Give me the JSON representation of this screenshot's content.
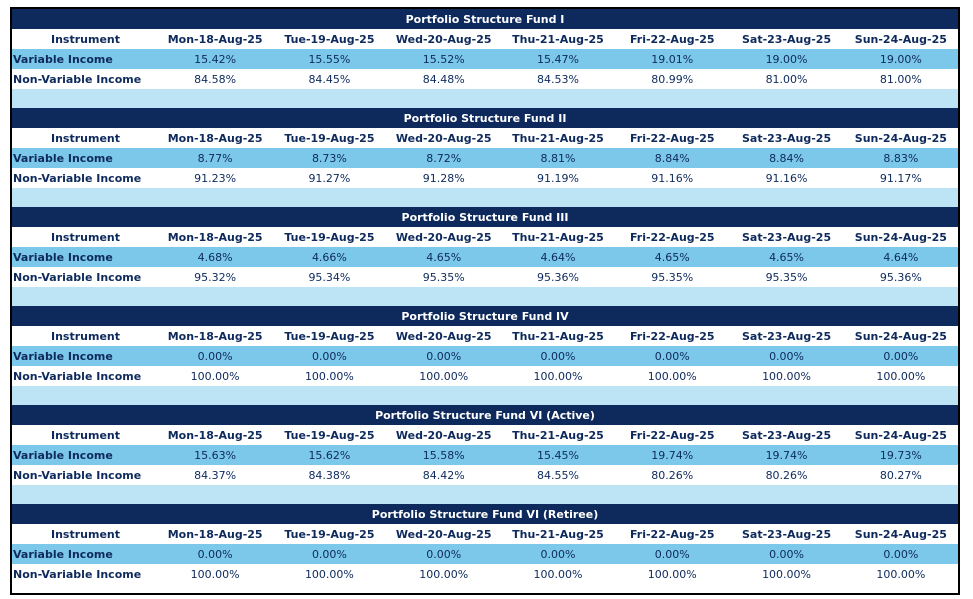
{
  "columns": {
    "instrument": "Instrument",
    "dates": [
      "Mon-18-Aug-25",
      "Tue-19-Aug-25",
      "Wed-20-Aug-25",
      "Thu-21-Aug-25",
      "Fri-22-Aug-25",
      "Sat-23-Aug-25",
      "Sun-24-Aug-25"
    ]
  },
  "row_labels": {
    "variable": "Variable Income",
    "non_variable": "Non-Variable Income"
  },
  "funds": [
    {
      "title": "Portfolio Structure Fund I",
      "variable": [
        "15.42%",
        "15.55%",
        "15.52%",
        "15.47%",
        "19.01%",
        "19.00%",
        "19.00%"
      ],
      "non_variable": [
        "84.58%",
        "84.45%",
        "84.48%",
        "84.53%",
        "80.99%",
        "81.00%",
        "81.00%"
      ]
    },
    {
      "title": "Portfolio Structure Fund II",
      "variable": [
        "8.77%",
        "8.73%",
        "8.72%",
        "8.81%",
        "8.84%",
        "8.84%",
        "8.83%"
      ],
      "non_variable": [
        "91.23%",
        "91.27%",
        "91.28%",
        "91.19%",
        "91.16%",
        "91.16%",
        "91.17%"
      ]
    },
    {
      "title": "Portfolio Structure Fund III",
      "variable": [
        "4.68%",
        "4.66%",
        "4.65%",
        "4.64%",
        "4.65%",
        "4.65%",
        "4.64%"
      ],
      "non_variable": [
        "95.32%",
        "95.34%",
        "95.35%",
        "95.36%",
        "95.35%",
        "95.35%",
        "95.36%"
      ]
    },
    {
      "title": "Portfolio Structure Fund IV",
      "variable": [
        "0.00%",
        "0.00%",
        "0.00%",
        "0.00%",
        "0.00%",
        "0.00%",
        "0.00%"
      ],
      "non_variable": [
        "100.00%",
        "100.00%",
        "100.00%",
        "100.00%",
        "100.00%",
        "100.00%",
        "100.00%"
      ]
    },
    {
      "title": "Portfolio Structure Fund VI (Active)",
      "variable": [
        "15.63%",
        "15.62%",
        "15.58%",
        "15.45%",
        "19.74%",
        "19.74%",
        "19.73%"
      ],
      "non_variable": [
        "84.37%",
        "84.38%",
        "84.42%",
        "84.55%",
        "80.26%",
        "80.26%",
        "80.27%"
      ]
    },
    {
      "title": "Portfolio Structure Fund VI (Retiree)",
      "variable": [
        "0.00%",
        "0.00%",
        "0.00%",
        "0.00%",
        "0.00%",
        "0.00%",
        "0.00%"
      ],
      "non_variable": [
        "100.00%",
        "100.00%",
        "100.00%",
        "100.00%",
        "100.00%",
        "100.00%",
        "100.00%"
      ]
    }
  ]
}
